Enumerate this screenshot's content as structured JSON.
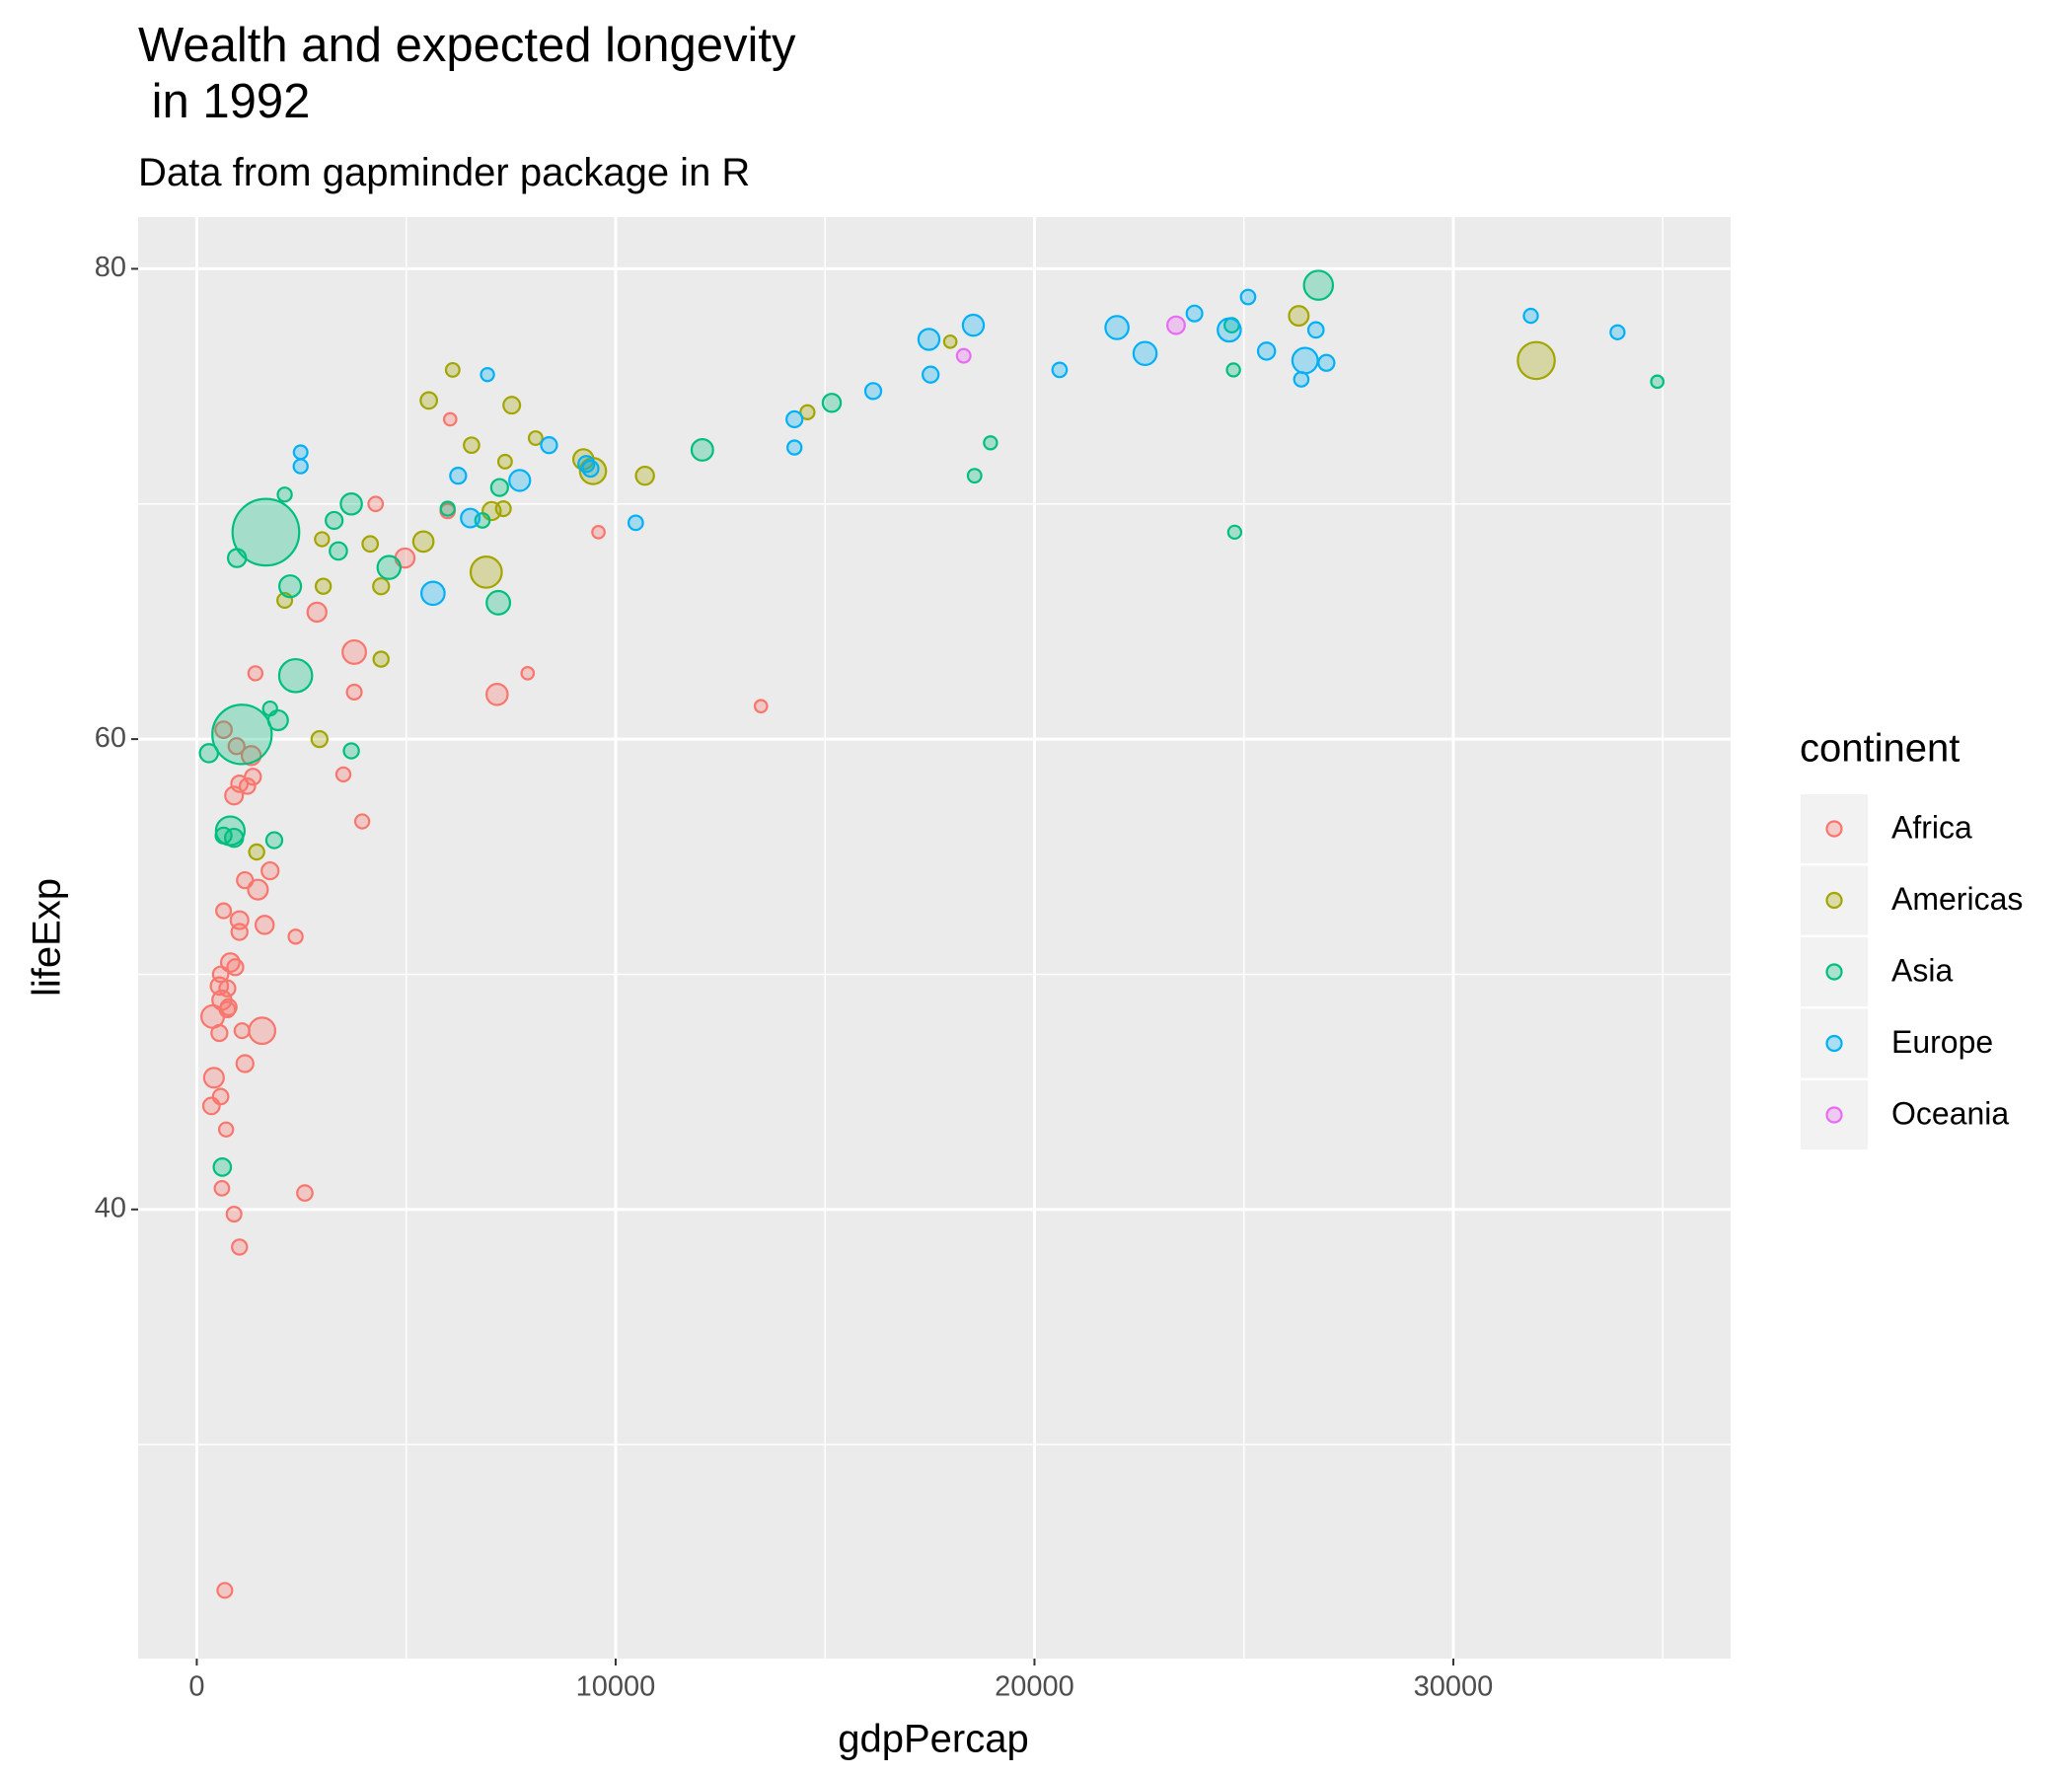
{
  "chart_data": {
    "type": "scatter",
    "title": "Wealth and expected longevity\n in 1992",
    "subtitle": "Data from gapminder package in R",
    "x_label": "gdpPercap",
    "y_label": "lifeExp",
    "legend_title": "continent",
    "legend_position": "right",
    "grid": true,
    "xlim": [
      -1400,
      36620
    ],
    "ylim": [
      20.9,
      82.2
    ],
    "xticks": [
      0,
      10000,
      20000,
      30000
    ],
    "yticks": [
      40,
      60,
      80
    ],
    "series": [
      {
        "name": "Africa",
        "color": "#F8766D",
        "x": [
          640,
          1400,
          1300,
          950,
          1020,
          1340,
          1210,
          890,
          1750,
          1150,
          1460,
          640,
          1020,
          1620,
          1020,
          2360,
          800,
          920,
          570,
          540,
          730,
          600,
          760,
          730,
          380,
          1080,
          1560,
          540,
          1150,
          410,
          570,
          350,
          700,
          600,
          890,
          1020,
          2580,
          670,
          2870,
          3760,
          3760,
          3500,
          3950,
          4270,
          4970,
          6050,
          5990,
          7170,
          7900,
          9590,
          13470
        ],
        "y": [
          60.4,
          62.8,
          59.3,
          59.7,
          58.1,
          58.4,
          58.0,
          57.6,
          54.4,
          54.0,
          53.6,
          52.7,
          52.3,
          52.1,
          51.8,
          51.6,
          50.5,
          50.3,
          50.0,
          49.5,
          49.4,
          48.9,
          48.6,
          48.5,
          48.2,
          47.6,
          47.6,
          47.5,
          46.2,
          45.6,
          44.8,
          44.4,
          43.4,
          40.9,
          39.8,
          38.4,
          40.7,
          23.8,
          65.4,
          63.7,
          62.0,
          58.5,
          56.5,
          70.0,
          67.7,
          73.6,
          69.7,
          61.9,
          62.8,
          68.8,
          61.4
        ],
        "size": [
          12,
          4,
          25,
          10,
          12,
          10,
          8,
          18,
          14,
          10,
          30,
          6,
          18,
          20,
          10,
          4,
          22,
          10,
          8,
          16,
          10,
          26,
          10,
          8,
          52,
          6,
          90,
          10,
          14,
          30,
          8,
          12,
          4,
          5,
          6,
          7,
          8,
          6,
          25,
          60,
          6,
          4,
          4,
          5,
          26,
          1,
          5,
          40,
          1,
          1,
          1
        ]
      },
      {
        "name": "Americas",
        "color": "#A3A500",
        "x": [
          2930,
          1430,
          2100,
          3020,
          2990,
          4140,
          4400,
          4400,
          5410,
          5540,
          6110,
          6560,
          6910,
          7040,
          7320,
          7360,
          7520,
          8090,
          9230,
          9460,
          10700,
          14580,
          17990,
          26310,
          31980
        ],
        "y": [
          60.0,
          55.2,
          65.9,
          66.5,
          68.5,
          68.3,
          66.5,
          63.4,
          68.4,
          74.4,
          75.7,
          72.5,
          67.1,
          69.7,
          69.8,
          71.8,
          74.2,
          72.8,
          71.9,
          71.4,
          71.2,
          73.9,
          76.9,
          78.0,
          76.1
        ],
        "size": [
          10,
          7,
          6,
          7,
          4,
          8,
          10,
          7,
          34,
          12,
          3,
          8,
          155,
          20,
          6,
          3,
          13,
          3,
          33,
          88,
          20,
          4,
          1,
          29,
          256
        ]
      },
      {
        "name": "Asia",
        "color": "#00BF7D",
        "x": [
          290,
          610,
          640,
          800,
          890,
          1850,
          960,
          1080,
          1650,
          1750,
          1940,
          2100,
          2230,
          2360,
          3280,
          3380,
          3690,
          3690,
          4590,
          5990,
          6820,
          7200,
          7230,
          12070,
          15160,
          18570,
          18950,
          24750,
          24780,
          24710,
          26780,
          34870
        ],
        "y": [
          59.4,
          41.8,
          55.9,
          56.1,
          55.8,
          55.7,
          67.7,
          60.2,
          68.8,
          61.3,
          60.8,
          70.4,
          66.5,
          62.7,
          69.3,
          68.0,
          70.0,
          59.5,
          67.3,
          69.8,
          69.3,
          65.8,
          70.7,
          72.3,
          74.3,
          71.2,
          72.6,
          75.7,
          68.8,
          77.6,
          79.3,
          75.2
        ],
        "size": [
          20,
          16,
          10,
          120,
          20,
          10,
          20,
          880,
          1164,
          4,
          30,
          4,
          45,
          185,
          14,
          16,
          40,
          7,
          56,
          4,
          5,
          60,
          14,
          43,
          20,
          3,
          2,
          2,
          2,
          5,
          124,
          1
        ]
      },
      {
        "name": "Europe",
        "color": "#00B0F6",
        "x": [
          2480,
          2480,
          6240,
          5640,
          6530,
          8410,
          7710,
          6940,
          9300,
          9400,
          10480,
          14270,
          14270,
          16150,
          17520,
          17480,
          18540,
          20600,
          21970,
          22640,
          23820,
          24650,
          25100,
          25540,
          26370,
          26460,
          26720,
          26970,
          31850,
          33920
        ],
        "y": [
          72.2,
          71.6,
          71.2,
          66.2,
          69.4,
          72.5,
          71.0,
          75.5,
          71.7,
          71.5,
          69.2,
          73.6,
          72.4,
          74.8,
          75.5,
          77.0,
          77.6,
          75.7,
          77.5,
          76.4,
          78.1,
          77.4,
          78.8,
          76.5,
          75.3,
          76.1,
          77.4,
          76.0,
          78.0,
          77.3
        ],
        "size": [
          3,
          4,
          10,
          58,
          23,
          10,
          38,
          2,
          10,
          10,
          5,
          10,
          4,
          10,
          10,
          39,
          39,
          5,
          57,
          57,
          9,
          57,
          5,
          15,
          5,
          80,
          8,
          10,
          4,
          4
        ]
      },
      {
        "name": "Oceania",
        "color": "#E76BF3",
        "x": [
          18310,
          23380
        ],
        "y": [
          76.3,
          77.6
        ],
        "size": [
          3,
          17
        ]
      }
    ]
  }
}
